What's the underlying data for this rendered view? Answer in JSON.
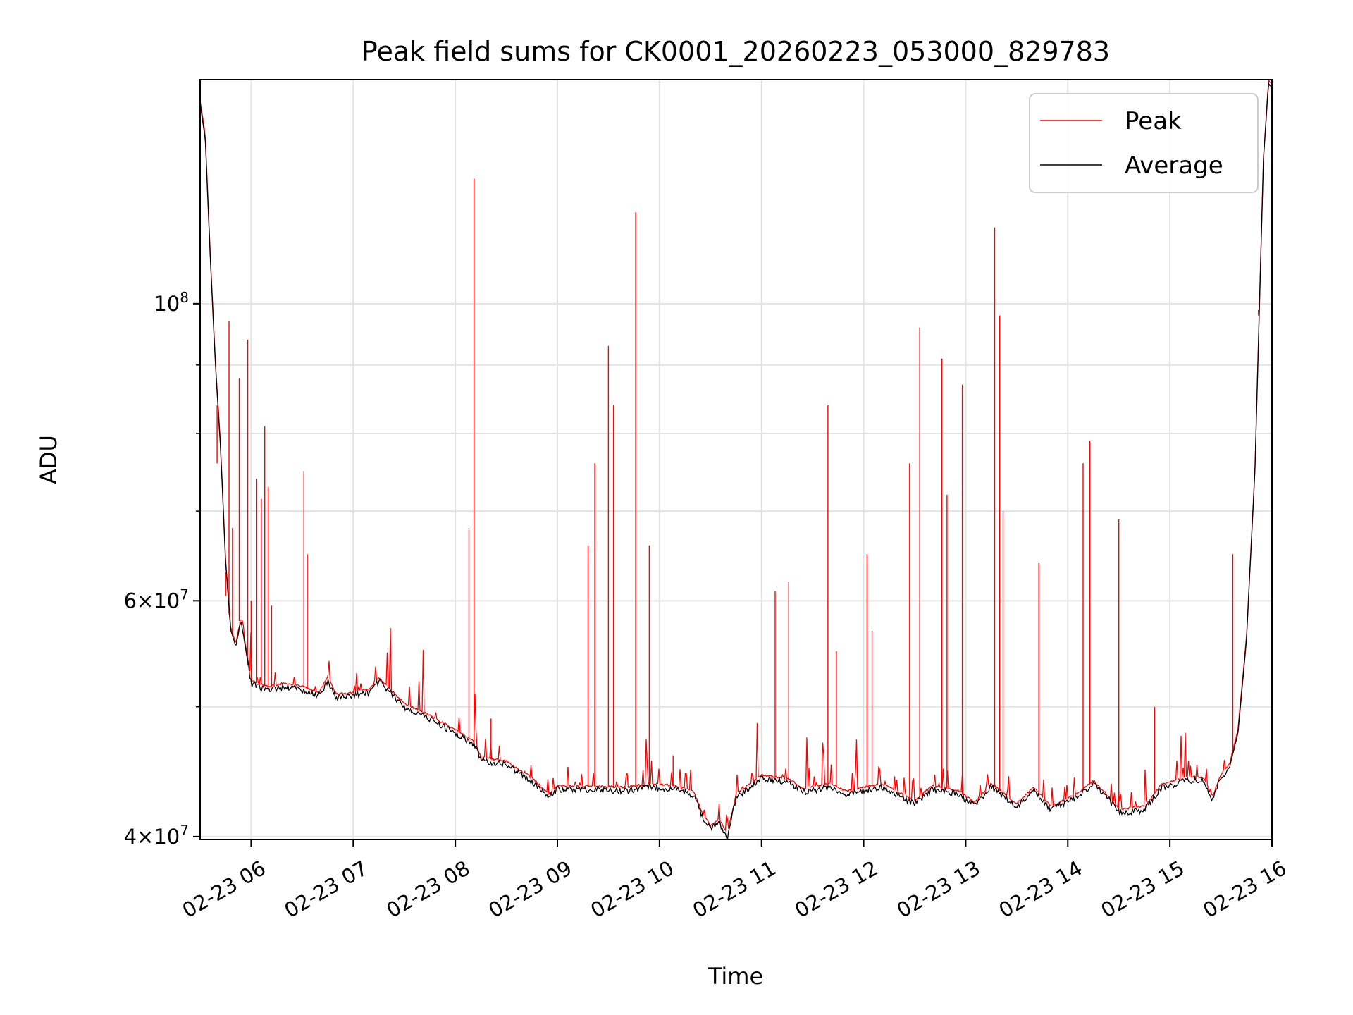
{
  "chart_data": {
    "type": "line",
    "title": "Peak field sums for CK0001_20260223_053000_829783",
    "xlabel": "Time",
    "ylabel": "ADU",
    "x_scale": "time",
    "y_scale": "log",
    "xlim": [
      "2026-02-23 05:30",
      "2026-02-23 16:00"
    ],
    "ylim": [
      39800000,
      147000000
    ],
    "grid": true,
    "legend": "top-right",
    "x_ticks": [
      {
        "value": "2026-02-23 06:00",
        "label": "02-23 06"
      },
      {
        "value": "2026-02-23 07:00",
        "label": "02-23 07"
      },
      {
        "value": "2026-02-23 08:00",
        "label": "02-23 08"
      },
      {
        "value": "2026-02-23 09:00",
        "label": "02-23 09"
      },
      {
        "value": "2026-02-23 10:00",
        "label": "02-23 10"
      },
      {
        "value": "2026-02-23 11:00",
        "label": "02-23 11"
      },
      {
        "value": "2026-02-23 12:00",
        "label": "02-23 12"
      },
      {
        "value": "2026-02-23 13:00",
        "label": "02-23 13"
      },
      {
        "value": "2026-02-23 14:00",
        "label": "02-23 14"
      },
      {
        "value": "2026-02-23 15:00",
        "label": "02-23 15"
      },
      {
        "value": "2026-02-23 16:00",
        "label": "02-23 16"
      }
    ],
    "y_ticks": [
      {
        "value": 40000000,
        "base": "4×10",
        "exp": "7"
      },
      {
        "value": 60000000,
        "base": "6×10",
        "exp": "7"
      },
      {
        "value": 100000000,
        "base": "10",
        "exp": "8"
      }
    ],
    "y_minor_ticks": [
      50000000,
      70000000,
      80000000,
      90000000
    ],
    "series": [
      {
        "name": "Average",
        "color": "#000000",
        "role": "baseline",
        "points": [
          [
            "2026-02-23 05:30",
            141000000
          ],
          [
            "2026-02-23 05:33",
            133000000
          ],
          [
            "2026-02-23 05:36",
            108000000
          ],
          [
            "2026-02-23 05:39",
            90000000
          ],
          [
            "2026-02-23 05:42",
            78000000
          ],
          [
            "2026-02-23 05:45",
            64000000
          ],
          [
            "2026-02-23 05:48",
            57000000
          ],
          [
            "2026-02-23 05:51",
            55500000
          ],
          [
            "2026-02-23 05:54",
            58000000
          ],
          [
            "2026-02-23 05:57",
            55000000
          ],
          [
            "2026-02-23 06:00",
            52000000
          ],
          [
            "2026-02-23 06:10",
            51500000
          ],
          [
            "2026-02-23 06:20",
            51800000
          ],
          [
            "2026-02-23 06:30",
            51500000
          ],
          [
            "2026-02-23 06:40",
            51000000
          ],
          [
            "2026-02-23 06:45",
            52300000
          ],
          [
            "2026-02-23 06:50",
            50800000
          ],
          [
            "2026-02-23 07:00",
            51000000
          ],
          [
            "2026-02-23 07:10",
            51300000
          ],
          [
            "2026-02-23 07:15",
            52300000
          ],
          [
            "2026-02-23 07:30",
            50000000
          ],
          [
            "2026-02-23 07:45",
            49000000
          ],
          [
            "2026-02-23 08:00",
            47800000
          ],
          [
            "2026-02-23 08:12",
            46800000
          ],
          [
            "2026-02-23 08:15",
            45600000
          ],
          [
            "2026-02-23 08:30",
            45300000
          ],
          [
            "2026-02-23 08:45",
            44000000
          ],
          [
            "2026-02-23 08:55",
            42800000
          ],
          [
            "2026-02-23 09:00",
            43400000
          ],
          [
            "2026-02-23 09:20",
            43400000
          ],
          [
            "2026-02-23 09:40",
            43300000
          ],
          [
            "2026-02-23 09:55",
            43600000
          ],
          [
            "2026-02-23 10:10",
            43400000
          ],
          [
            "2026-02-23 10:20",
            43000000
          ],
          [
            "2026-02-23 10:25",
            41500000
          ],
          [
            "2026-02-23 10:30",
            40500000
          ],
          [
            "2026-02-23 10:35",
            41000000
          ],
          [
            "2026-02-23 10:40",
            40000000
          ],
          [
            "2026-02-23 10:45",
            42800000
          ],
          [
            "2026-02-23 11:00",
            44200000
          ],
          [
            "2026-02-23 11:15",
            44000000
          ],
          [
            "2026-02-23 11:25",
            43200000
          ],
          [
            "2026-02-23 11:40",
            43600000
          ],
          [
            "2026-02-23 11:50",
            43000000
          ],
          [
            "2026-02-23 12:00",
            43300000
          ],
          [
            "2026-02-23 12:10",
            43600000
          ],
          [
            "2026-02-23 12:20",
            43000000
          ],
          [
            "2026-02-23 12:30",
            42300000
          ],
          [
            "2026-02-23 12:40",
            43400000
          ],
          [
            "2026-02-23 12:55",
            43100000
          ],
          [
            "2026-02-23 13:05",
            42200000
          ],
          [
            "2026-02-23 13:15",
            43600000
          ],
          [
            "2026-02-23 13:30",
            42100000
          ],
          [
            "2026-02-23 13:40",
            43300000
          ],
          [
            "2026-02-23 13:50",
            41900000
          ],
          [
            "2026-02-23 14:05",
            42800000
          ],
          [
            "2026-02-23 14:15",
            43800000
          ],
          [
            "2026-02-23 14:25",
            42500000
          ],
          [
            "2026-02-23 14:30",
            41700000
          ],
          [
            "2026-02-23 14:45",
            41900000
          ],
          [
            "2026-02-23 14:55",
            43500000
          ],
          [
            "2026-02-23 15:10",
            44100000
          ],
          [
            "2026-02-23 15:20",
            44000000
          ],
          [
            "2026-02-23 15:25",
            42600000
          ],
          [
            "2026-02-23 15:30",
            44300000
          ],
          [
            "2026-02-23 15:35",
            45000000
          ],
          [
            "2026-02-23 15:40",
            47800000
          ],
          [
            "2026-02-23 15:45",
            56000000
          ],
          [
            "2026-02-23 15:50",
            75000000
          ],
          [
            "2026-02-23 15:55",
            128000000
          ],
          [
            "2026-02-23 15:58",
            146000000
          ],
          [
            "2026-02-23 16:00",
            145000000
          ]
        ]
      },
      {
        "name": "Peak",
        "color": "#ff0000",
        "role": "spikes",
        "points": [
          [
            "2026-02-23 05:40",
            76000000
          ],
          [
            "2026-02-23 05:45",
            60500000
          ],
          [
            "2026-02-23 05:47",
            97000000
          ],
          [
            "2026-02-23 05:49",
            68000000
          ],
          [
            "2026-02-23 05:53",
            88000000
          ],
          [
            "2026-02-23 05:58",
            94000000
          ],
          [
            "2026-02-23 06:00",
            60000000
          ],
          [
            "2026-02-23 06:03",
            74000000
          ],
          [
            "2026-02-23 06:06",
            71500000
          ],
          [
            "2026-02-23 06:08",
            81000000
          ],
          [
            "2026-02-23 06:10",
            73000000
          ],
          [
            "2026-02-23 06:12",
            59500000
          ],
          [
            "2026-02-23 06:31",
            75000000
          ],
          [
            "2026-02-23 06:33",
            65000000
          ],
          [
            "2026-02-23 08:08",
            68000000
          ],
          [
            "2026-02-23 08:11",
            124000000
          ],
          [
            "2026-02-23 08:21",
            49000000
          ],
          [
            "2026-02-23 09:18",
            66000000
          ],
          [
            "2026-02-23 09:22",
            76000000
          ],
          [
            "2026-02-23 09:30",
            93000000
          ],
          [
            "2026-02-23 09:33",
            84000000
          ],
          [
            "2026-02-23 09:46",
            117000000
          ],
          [
            "2026-02-23 09:54",
            66000000
          ],
          [
            "2026-02-23 10:08",
            46000000
          ],
          [
            "2026-02-23 11:08",
            61000000
          ],
          [
            "2026-02-23 11:16",
            62000000
          ],
          [
            "2026-02-23 11:39",
            84000000
          ],
          [
            "2026-02-23 11:44",
            55000000
          ],
          [
            "2026-02-23 12:02",
            65000000
          ],
          [
            "2026-02-23 12:05",
            57000000
          ],
          [
            "2026-02-23 12:27",
            76000000
          ],
          [
            "2026-02-23 12:33",
            96000000
          ],
          [
            "2026-02-23 12:46",
            91000000
          ],
          [
            "2026-02-23 12:49",
            72000000
          ],
          [
            "2026-02-23 12:58",
            87000000
          ],
          [
            "2026-02-23 13:17",
            114000000
          ],
          [
            "2026-02-23 13:20",
            98000000
          ],
          [
            "2026-02-23 13:22",
            70000000
          ],
          [
            "2026-02-23 13:43",
            64000000
          ],
          [
            "2026-02-23 14:09",
            76000000
          ],
          [
            "2026-02-23 14:13",
            79000000
          ],
          [
            "2026-02-23 14:30",
            69000000
          ],
          [
            "2026-02-23 14:51",
            50000000
          ],
          [
            "2026-02-23 15:37",
            65000000
          ],
          [
            "2026-02-23 15:52",
            98000000
          ]
        ]
      }
    ]
  }
}
